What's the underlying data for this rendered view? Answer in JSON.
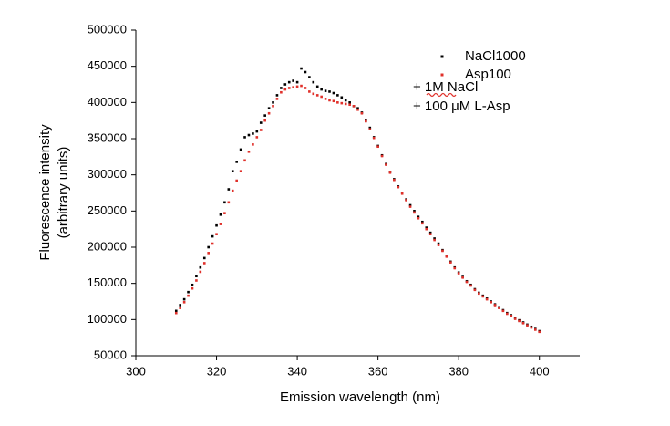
{
  "chart_data": {
    "type": "scatter",
    "xlabel": "Emission wavelength (nm)",
    "ylabel": [
      "Fluorescence intensity",
      "(arbitrary units)"
    ],
    "x": [
      310,
      311,
      312,
      313,
      314,
      315,
      316,
      317,
      318,
      319,
      320,
      321,
      322,
      323,
      324,
      325,
      326,
      327,
      328,
      329,
      330,
      331,
      332,
      333,
      334,
      335,
      336,
      337,
      338,
      339,
      340,
      341,
      342,
      343,
      344,
      345,
      346,
      347,
      348,
      349,
      350,
      351,
      352,
      353,
      354,
      355,
      356,
      357,
      358,
      359,
      360,
      361,
      362,
      363,
      364,
      365,
      366,
      367,
      368,
      369,
      370,
      371,
      372,
      373,
      374,
      375,
      376,
      377,
      378,
      379,
      380,
      381,
      382,
      383,
      384,
      385,
      386,
      387,
      388,
      389,
      390,
      391,
      392,
      393,
      394,
      395,
      396,
      397,
      398,
      399,
      400
    ],
    "series": [
      {
        "name": "NaCl1000",
        "color": "#000000",
        "values": [
          112000,
          120000,
          128000,
          138000,
          148000,
          160000,
          172000,
          185000,
          200000,
          215000,
          230000,
          245000,
          262000,
          280000,
          305000,
          318000,
          335000,
          352000,
          355000,
          357000,
          360000,
          372000,
          382000,
          392000,
          400000,
          410000,
          420000,
          425000,
          428000,
          430000,
          428000,
          447000,
          442000,
          435000,
          428000,
          422000,
          418000,
          416000,
          415000,
          413000,
          410000,
          407000,
          403000,
          400000,
          395000,
          392000,
          386000,
          375000,
          365000,
          352000,
          340000,
          327000,
          315000,
          304000,
          294000,
          284000,
          275000,
          266000,
          258000,
          250000,
          242000,
          235000,
          227000,
          220000,
          212000,
          205000,
          196000,
          188000,
          180000,
          172000,
          165000,
          159000,
          153000,
          148000,
          142000,
          137000,
          133000,
          129000,
          125000,
          121000,
          117000,
          113000,
          109000,
          106000,
          102000,
          99000,
          96000,
          93000,
          90000,
          87000,
          84000
        ]
      },
      {
        "name": "Asp100",
        "color": "#e0302a",
        "values": [
          109000,
          116000,
          124000,
          133000,
          143000,
          154000,
          166000,
          178000,
          192000,
          205000,
          218000,
          232000,
          247000,
          262000,
          278000,
          292000,
          305000,
          320000,
          332000,
          342000,
          352000,
          362000,
          375000,
          385000,
          395000,
          405000,
          414000,
          418000,
          420000,
          421000,
          422000,
          423000,
          420000,
          415000,
          412000,
          410000,
          408000,
          405000,
          403000,
          402000,
          400000,
          399000,
          398000,
          397000,
          395000,
          390000,
          385000,
          374000,
          363000,
          351000,
          339000,
          326000,
          314000,
          303000,
          293000,
          283000,
          274000,
          265000,
          256000,
          248000,
          240000,
          233000,
          225000,
          218000,
          210000,
          203000,
          195000,
          187000,
          179000,
          171000,
          164000,
          158000,
          152000,
          147000,
          141000,
          136000,
          132000,
          128000,
          124000,
          120000,
          116000,
          112000,
          108000,
          105000,
          101000,
          98000,
          95000,
          92000,
          89000,
          86000,
          83000
        ]
      }
    ],
    "annotations": [
      {
        "text": "+ 1M NaCl",
        "color": "#000000"
      },
      {
        "text": "+ 100 μM L-Asp",
        "color": "#e0302a"
      }
    ],
    "xlim": [
      300,
      410
    ],
    "xticks": [
      300,
      320,
      340,
      360,
      380,
      400
    ],
    "ylim": [
      50000,
      500000
    ],
    "yticks": [
      50000,
      100000,
      150000,
      200000,
      250000,
      300000,
      350000,
      400000,
      450000,
      500000
    ],
    "grid": false,
    "legend": "top-right"
  }
}
